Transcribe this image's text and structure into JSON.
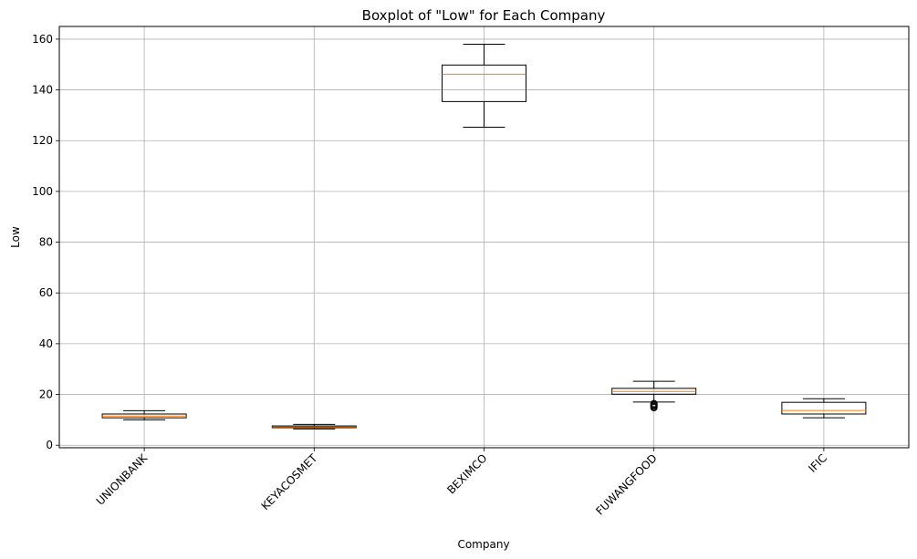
{
  "chart_data": {
    "type": "boxplot",
    "title": "Boxplot of \"Low\" for Each Company",
    "xlabel": "Company",
    "ylabel": "Low",
    "ylim": [
      -1,
      165
    ],
    "yticks": [
      0,
      20,
      40,
      60,
      80,
      100,
      120,
      140,
      160
    ],
    "grid": true,
    "categories": [
      "UNIONBANK",
      "KEYACOSMET",
      "BEXIMCO",
      "FUWANGFOOD",
      "IFIC"
    ],
    "boxes": [
      {
        "category": "UNIONBANK",
        "whisker_low": 10.0,
        "q1": 10.8,
        "median": 11.5,
        "q3": 12.3,
        "whisker_high": 13.6,
        "outliers": []
      },
      {
        "category": "KEYACOSMET",
        "whisker_low": 6.4,
        "q1": 6.9,
        "median": 7.2,
        "q3": 7.6,
        "whisker_high": 8.2,
        "outliers": []
      },
      {
        "category": "BEXIMCO",
        "whisker_low": 125.3,
        "q1": 135.4,
        "median": 146.2,
        "q3": 149.8,
        "whisker_high": 158.0,
        "outliers": []
      },
      {
        "category": "FUWANGFOOD",
        "whisker_low": 17.0,
        "q1": 20.1,
        "median": 21.2,
        "q3": 22.4,
        "whisker_high": 25.2,
        "outliers": [
          14.8,
          15.2,
          15.6,
          16.0,
          16.4
        ]
      },
      {
        "category": "IFIC",
        "whisker_low": 10.8,
        "q1": 12.3,
        "median": 13.7,
        "q3": 16.9,
        "whisker_high": 18.3,
        "outliers": []
      }
    ],
    "colors": {
      "box": "#000000",
      "median": "#ff7f0e",
      "grid": "#b0b0b0"
    }
  }
}
